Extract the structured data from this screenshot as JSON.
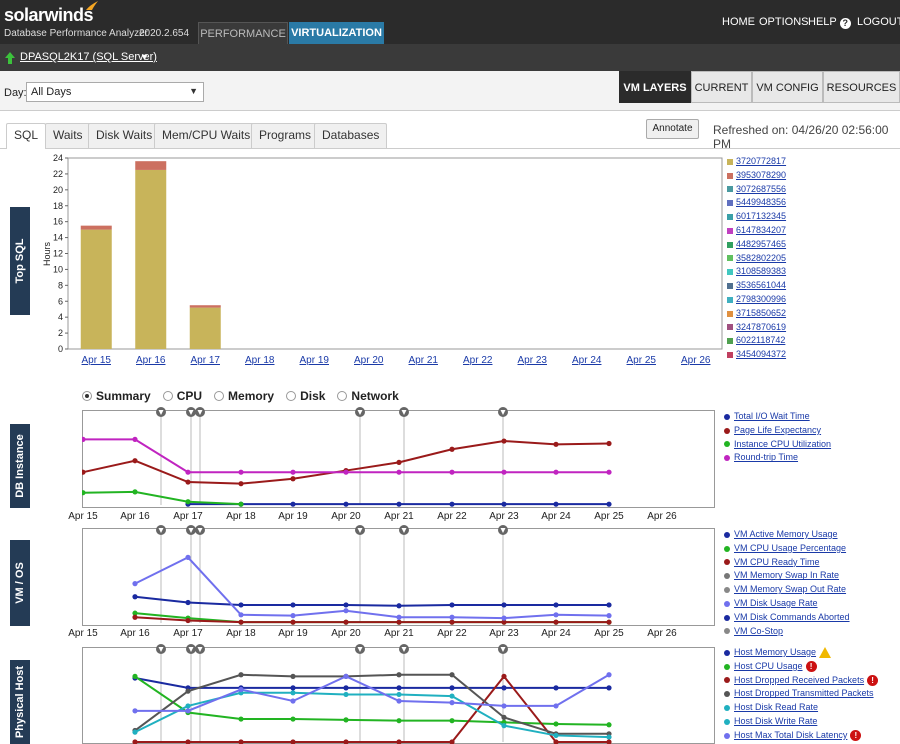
{
  "header": {
    "logo": "solarwinds",
    "product": "Database Performance Analyzer",
    "version": "2020.2.654",
    "nav_tabs": [
      "PERFORMANCE",
      "VIRTUALIZATION"
    ],
    "links": {
      "home": "HOME",
      "options": "OPTIONS",
      "help": "HELP",
      "logout": "LOGOUT"
    }
  },
  "server": {
    "name": "DPASQL2K17 (SQL Server)"
  },
  "filters": {
    "day_label": "Day:",
    "day_value": "All Days"
  },
  "view_tabs": [
    "VM LAYERS",
    "CURRENT",
    "VM CONFIG",
    "RESOURCES"
  ],
  "sub_tabs": [
    "SQL",
    "Waits",
    "Disk Waits",
    "Mem/CPU Waits",
    "Programs",
    "Databases"
  ],
  "annotate_label": "Annotate",
  "refreshed": "Refreshed on: 04/26/20 02:56:00 PM",
  "sections": {
    "top_sql": "Top SQL",
    "db_instance": "DB Instance",
    "vm_os": "VM / OS",
    "physical_host": "Physical Host"
  },
  "radios": {
    "options": [
      "Summary",
      "CPU",
      "Memory",
      "Disk",
      "Network"
    ],
    "selected": "Summary"
  },
  "colors": {
    "topbar": "#2b2b2b",
    "virt_tab": "#2a7aa6",
    "section_label": "#243b55"
  },
  "chart_data": [
    {
      "type": "bar",
      "ylabel": "Hours",
      "ylim": [
        0,
        24
      ],
      "yticks": [
        0,
        2,
        4,
        6,
        8,
        10,
        12,
        14,
        16,
        18,
        20,
        22,
        24
      ],
      "categories": [
        "Apr 15",
        "Apr 16",
        "Apr 17",
        "Apr 18",
        "Apr 19",
        "Apr 20",
        "Apr 21",
        "Apr 22",
        "Apr 23",
        "Apr 24",
        "Apr 25",
        "Apr 26"
      ],
      "series": [
        {
          "name": "3720772817",
          "color": "#c8b45a",
          "values": [
            15.0,
            22.5,
            5.2,
            0,
            0,
            0,
            0,
            0,
            0,
            0,
            0,
            0
          ]
        },
        {
          "name": "3953078290",
          "color": "#cc7060",
          "values": [
            0.5,
            1.1,
            0.3,
            0,
            0,
            0,
            0,
            0,
            0,
            0,
            0,
            0
          ]
        },
        {
          "name": "3072687556",
          "color": "#4a9aa0"
        },
        {
          "name": "5449948356",
          "color": "#6070c0"
        },
        {
          "name": "6017132345",
          "color": "#3aa0a8"
        },
        {
          "name": "6147834207",
          "color": "#c040c0"
        },
        {
          "name": "4482957465",
          "color": "#30a060"
        },
        {
          "name": "3582802205",
          "color": "#60c060"
        },
        {
          "name": "3108589383",
          "color": "#40c8c0"
        },
        {
          "name": "3536561044",
          "color": "#507090"
        },
        {
          "name": "2798300996",
          "color": "#40b0c0"
        },
        {
          "name": "3715850652",
          "color": "#e09040"
        },
        {
          "name": "3247870619",
          "color": "#a05080"
        },
        {
          "name": "6022118742",
          "color": "#50a050"
        },
        {
          "name": "3454094372",
          "color": "#c04060"
        }
      ]
    },
    {
      "type": "line",
      "x": [
        "Apr 15",
        "Apr 16",
        "Apr 17",
        "Apr 18",
        "Apr 19",
        "Apr 20",
        "Apr 21",
        "Apr 22",
        "Apr 23",
        "Apr 24",
        "Apr 25",
        "Apr 26"
      ],
      "series": [
        {
          "name": "Total I/O Wait Time",
          "color": "#1a2aa0",
          "values": [
            null,
            null,
            1,
            1,
            1,
            1,
            1,
            1,
            1,
            1,
            1,
            null
          ]
        },
        {
          "name": "Page Life Expectancy",
          "color": "#9a1a1a",
          "values": [
            40,
            54,
            28,
            26,
            32,
            42,
            52,
            68,
            78,
            74,
            75,
            null
          ]
        },
        {
          "name": "Instance CPU Utilization",
          "color": "#22b422",
          "values": [
            15,
            16,
            4,
            1,
            null,
            null,
            null,
            null,
            null,
            null,
            null,
            null
          ]
        },
        {
          "name": "Round-trip Time",
          "color": "#c024c0",
          "values": [
            80,
            80,
            40,
            40,
            40,
            40,
            40,
            40,
            40,
            40,
            40,
            null
          ]
        }
      ]
    },
    {
      "type": "line",
      "x": [
        "Apr 15",
        "Apr 16",
        "Apr 17",
        "Apr 18",
        "Apr 19",
        "Apr 20",
        "Apr 21",
        "Apr 22",
        "Apr 23",
        "Apr 24",
        "Apr 25",
        "Apr 26"
      ],
      "series": [
        {
          "name": "VM Active Memory Usage",
          "color": "#1a2aa0",
          "values": [
            null,
            32,
            25,
            22,
            22,
            22,
            21,
            22,
            22,
            22,
            22,
            null
          ]
        },
        {
          "name": "VM CPU Usage Percentage",
          "color": "#22b422",
          "values": [
            null,
            12,
            6,
            1,
            1,
            1,
            1,
            1,
            1,
            1,
            1,
            null
          ]
        },
        {
          "name": "VM CPU Ready Time",
          "color": "#9a1a1a",
          "values": [
            null,
            7,
            3,
            1,
            1,
            1,
            1,
            1,
            1,
            1,
            1,
            null
          ]
        },
        {
          "name": "VM Memory Swap In Rate",
          "color": "#777777"
        },
        {
          "name": "VM Memory Swap Out Rate",
          "color": "#888888"
        },
        {
          "name": "VM Disk Usage Rate",
          "color": "#7070ee",
          "values": [
            null,
            48,
            80,
            10,
            9,
            15,
            7,
            7,
            6,
            10,
            9,
            null
          ]
        },
        {
          "name": "VM Disk Commands Aborted",
          "color": "#1a2aa0"
        },
        {
          "name": "VM Co-Stop",
          "color": "#888888"
        }
      ]
    },
    {
      "type": "line",
      "x": [
        "Apr 15",
        "Apr 16",
        "Apr 17",
        "Apr 18",
        "Apr 19",
        "Apr 20",
        "Apr 21",
        "Apr 22",
        "Apr 23",
        "Apr 24",
        "Apr 25",
        "Apr 26"
      ],
      "series": [
        {
          "name": "Host Memory Usage",
          "color": "#1a2aa0",
          "status": "warning",
          "values": [
            null,
            78,
            66,
            66,
            66,
            66,
            66,
            66,
            66,
            66,
            66,
            null
          ]
        },
        {
          "name": "Host CPU Usage",
          "color": "#22b422",
          "status": "error",
          "values": [
            null,
            80,
            36,
            28,
            28,
            27,
            26,
            26,
            24,
            22,
            21,
            null
          ]
        },
        {
          "name": "Host Dropped Received Packets",
          "color": "#9a1a1a",
          "status": "error",
          "values": [
            null,
            0,
            0,
            0,
            0,
            0,
            0,
            0,
            80,
            0,
            0,
            null
          ]
        },
        {
          "name": "Host Dropped Transmitted Packets",
          "color": "#555555",
          "values": [
            null,
            14,
            62,
            82,
            80,
            80,
            82,
            82,
            30,
            10,
            10,
            null
          ]
        },
        {
          "name": "Host Disk Read Rate",
          "color": "#20b0c0",
          "values": [
            null,
            12,
            44,
            60,
            60,
            58,
            58,
            56,
            20,
            8,
            6,
            null
          ]
        },
        {
          "name": "Host Disk Write Rate",
          "color": "#20b0c0"
        },
        {
          "name": "Host Max Total Disk Latency",
          "color": "#7070ee",
          "status": "error",
          "values": [
            null,
            38,
            38,
            64,
            50,
            80,
            50,
            48,
            44,
            44,
            82,
            null
          ]
        }
      ]
    }
  ]
}
